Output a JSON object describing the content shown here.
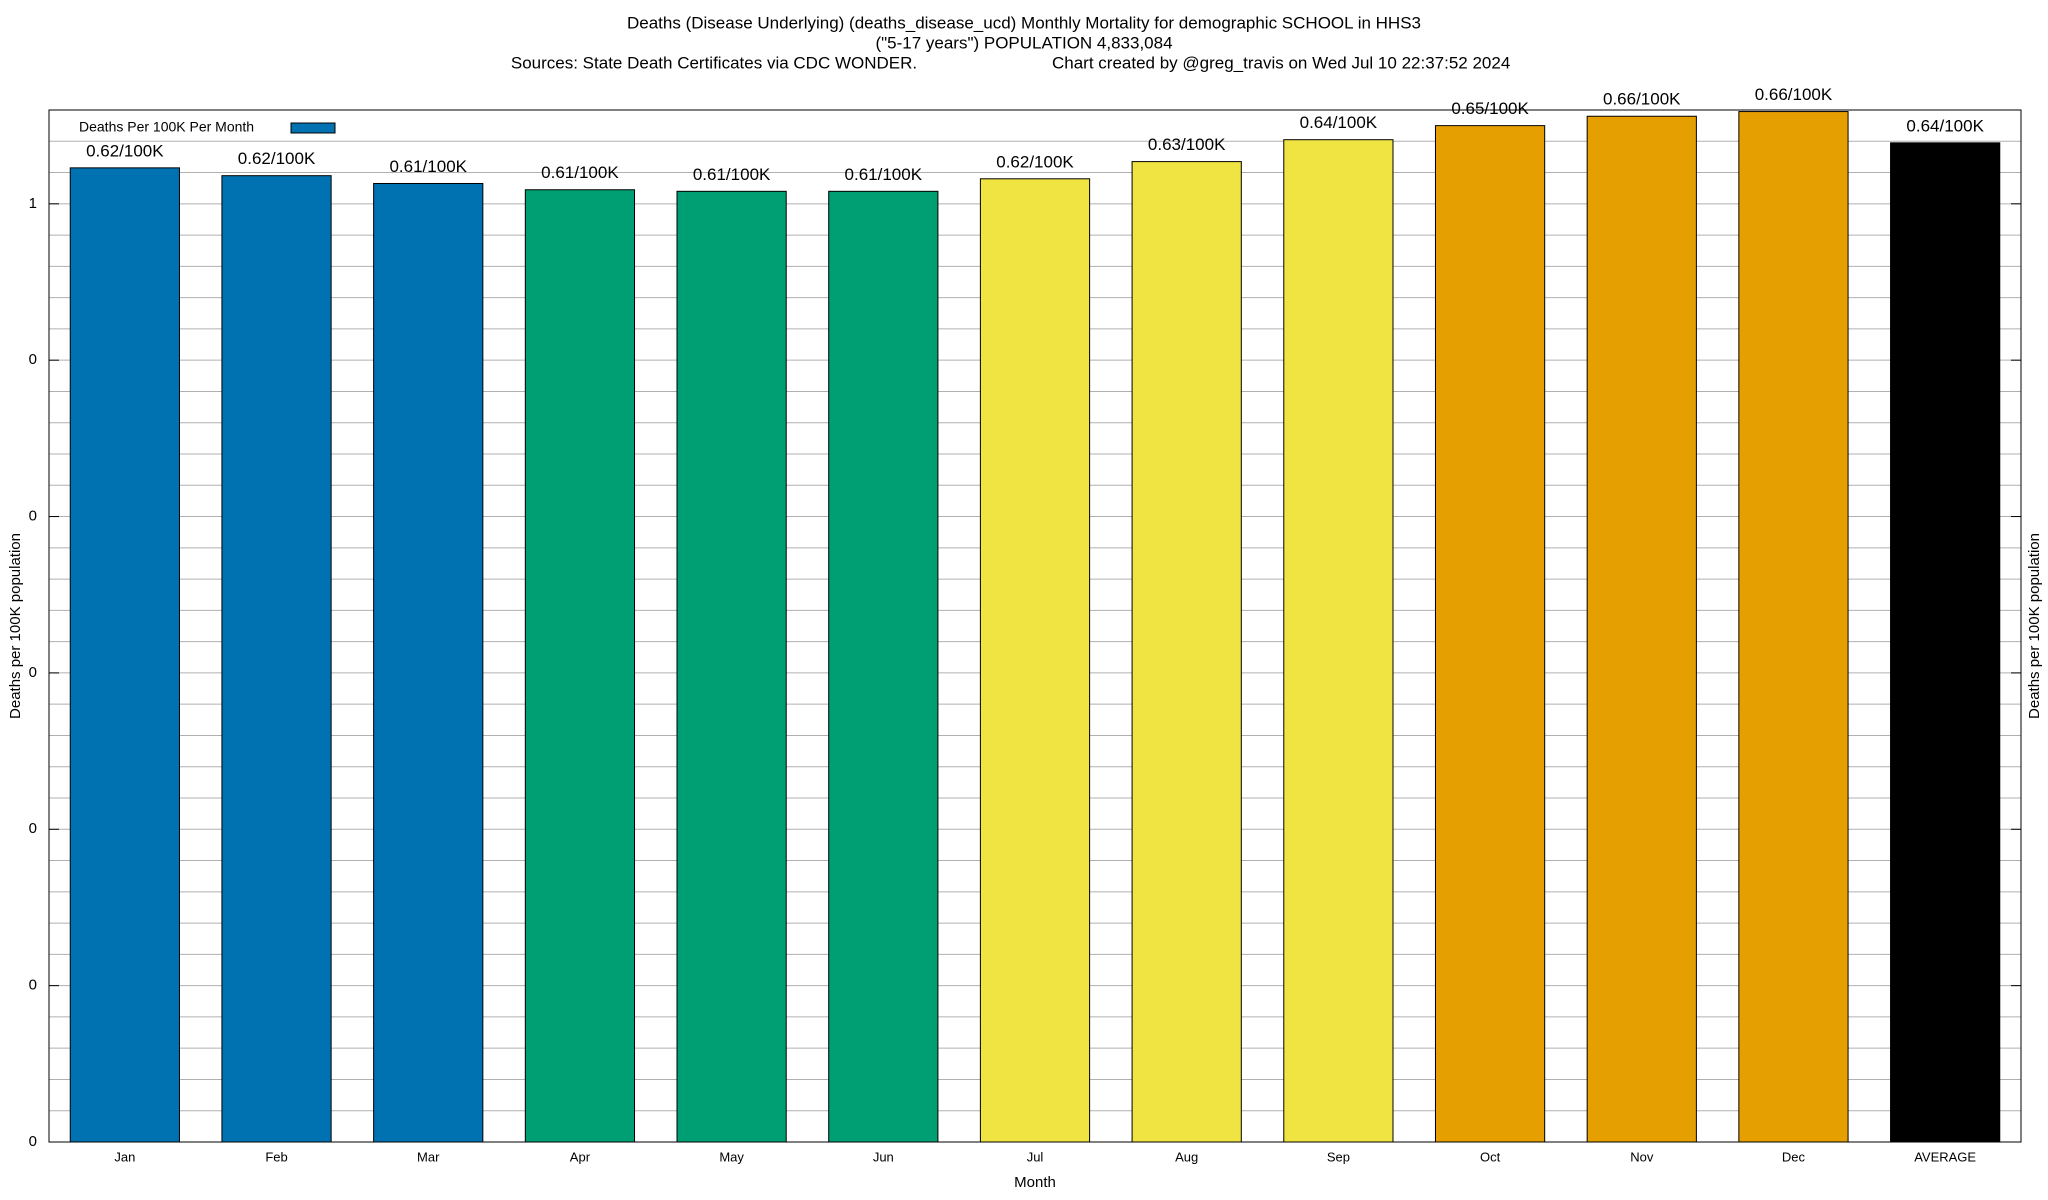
{
  "chart_data": {
    "type": "bar",
    "title": "Deaths (Disease Underlying) (deaths_disease_ucd) Monthly Mortality for demographic SCHOOL in HHS3",
    "subtitle": "(\"5-17 years\") POPULATION 4,833,084",
    "source": "Sources: State Death Certificates via CDC WONDER.",
    "credit": "Chart created by @greg_travis on Wed Jul 10 22:37:52 2024",
    "x_label": "Month",
    "y_label": "Deaths per 100K population",
    "y2_label": "Deaths per 100K population",
    "categories": [
      "Jan",
      "Feb",
      "Mar",
      "Apr",
      "May",
      "Jun",
      "Jul",
      "Aug",
      "Sep",
      "Oct",
      "Nov",
      "Dec",
      "AVERAGE"
    ],
    "series": [
      {
        "name": "Deaths Per 100K Per Month",
        "color": "#0072b2",
        "values": [
          0.623,
          0.618,
          0.613,
          0.609,
          0.608,
          0.608,
          0.616,
          0.627,
          0.641,
          0.65,
          0.656,
          0.659,
          0.639
        ],
        "value_labels": [
          "0.62/100K",
          "0.62/100K",
          "0.61/100K",
          "0.61/100K",
          "0.61/100K",
          "0.61/100K",
          "0.62/100K",
          "0.63/100K",
          "0.64/100K",
          "0.65/100K",
          "0.66/100K",
          "0.66/100K",
          "0.64/100K"
        ],
        "colors": [
          "#0072b2",
          "#0072b2",
          "#0072b2",
          "#009e73",
          "#009e73",
          "#009e73",
          "#f0e442",
          "#f0e442",
          "#f0e442",
          "#e69f00",
          "#e69f00",
          "#e69f00",
          "#000000"
        ]
      }
    ],
    "ylim": [
      0,
      0.66
    ],
    "yticks": [
      0,
      {
        "value": 0.1,
        "label": "0"
      },
      {
        "value": 0.2,
        "label": "0"
      },
      {
        "value": 0.3,
        "label": "0"
      },
      {
        "value": 0.4,
        "label": "0"
      },
      {
        "value": 0.5,
        "label": "0"
      },
      {
        "value": 0.6,
        "label": "1"
      }
    ],
    "yminor_ticks": [
      0.02,
      0.04,
      0.06,
      0.08,
      0.12,
      0.14,
      0.16,
      0.18,
      0.22,
      0.24,
      0.26,
      0.28,
      0.32,
      0.34,
      0.36,
      0.38,
      0.42,
      0.44,
      0.46,
      0.48,
      0.52,
      0.54,
      0.56,
      0.58,
      0.62,
      0.64
    ],
    "grid": true,
    "legend": "top-left"
  }
}
